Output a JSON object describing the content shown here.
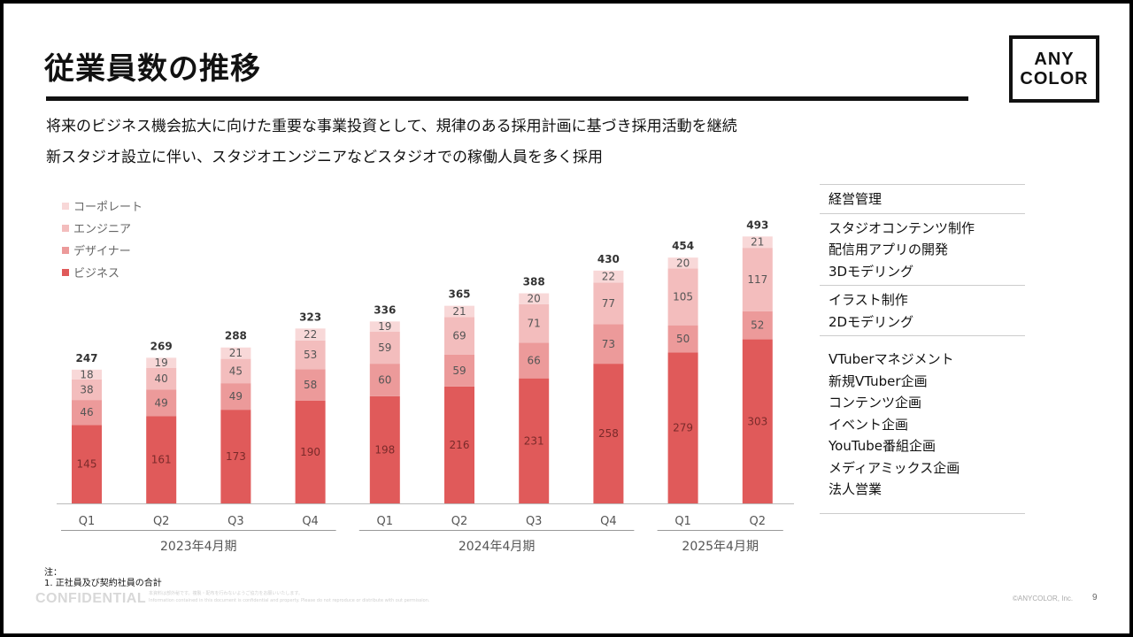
{
  "title": "従業員数の推移",
  "logo": {
    "line1": "ANY",
    "line2": "COLOR"
  },
  "subtitles": [
    "将来のビジネス機会拡大に向けた重要な事業投資として、規律のある採用計画に基づき採用活動を継続",
    "新スタジオ設立に伴い、スタジオエンジニアなどスタジオでの稼働人員を多く採用"
  ],
  "chart_data": {
    "type": "bar",
    "stacked": true,
    "categories": [
      "Q1",
      "Q2",
      "Q3",
      "Q4",
      "Q1",
      "Q2",
      "Q3",
      "Q4",
      "Q1",
      "Q2"
    ],
    "period_groups": [
      {
        "label": "2023年4月期",
        "count": 4
      },
      {
        "label": "2024年4月期",
        "count": 4
      },
      {
        "label": "2025年4月期",
        "count": 2
      }
    ],
    "series": [
      {
        "name": "ビジネス",
        "color": "#e05a5a",
        "values": [
          145,
          161,
          173,
          190,
          198,
          216,
          231,
          258,
          279,
          303
        ]
      },
      {
        "name": "デザイナー",
        "color": "#ec9a9a",
        "values": [
          46,
          49,
          49,
          58,
          60,
          59,
          66,
          73,
          50,
          52
        ]
      },
      {
        "name": "エンジニア",
        "color": "#f3bdbd",
        "values": [
          38,
          40,
          45,
          53,
          59,
          69,
          71,
          77,
          105,
          117
        ]
      },
      {
        "name": "コーポレート",
        "color": "#f8d8d8",
        "values": [
          18,
          19,
          21,
          22,
          19,
          21,
          20,
          22,
          20,
          21
        ]
      }
    ],
    "totals": [
      247,
      269,
      288,
      323,
      336,
      365,
      388,
      430,
      454,
      493
    ],
    "legend_order": [
      "コーポレート",
      "エンジニア",
      "デザイナー",
      "ビジネス"
    ],
    "legend_position": "top-left",
    "ylim": [
      0,
      500
    ]
  },
  "right_panel": [
    [
      "経営管理"
    ],
    [
      "スタジオコンテンツ制作",
      "配信用アプリの開発",
      "3Dモデリング"
    ],
    [
      "イラスト制作",
      "2Dモデリング"
    ],
    [
      "VTuberマネジメント",
      "新規VTuber企画",
      "コンテンツ企画",
      "イベント企画",
      "YouTube番組企画",
      "メディアミックス企画",
      "法人営業"
    ]
  ],
  "notes": {
    "heading": "注：",
    "line1": "1. 正社員及び契約社員の合計"
  },
  "footer": {
    "confidential": "CONFIDENTIAL",
    "fine1": "本資料は部外秘です。複製・配布を行わないようご協力をお願いいたします。",
    "fine2": "Information contained in this document is confidential and property. Please do not reproduce or distribute with out permission.",
    "copyright": "©ANYCOLOR, Inc.",
    "page": "9"
  }
}
